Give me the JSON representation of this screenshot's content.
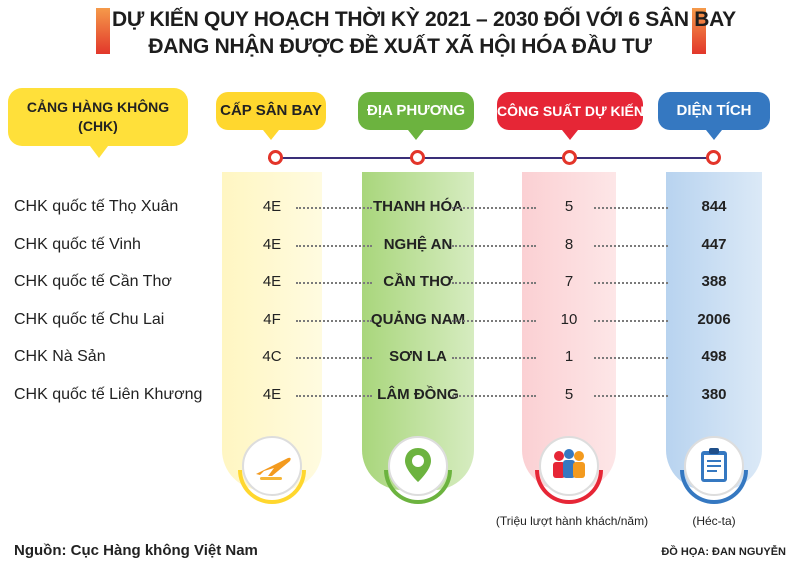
{
  "title": {
    "line1": "DỰ KIẾN QUY HOẠCH THỜI KỲ 2021 – 2030 ĐỐI VỚI 6 SÂN BAY",
    "line2": "ĐANG NHẬN ĐƯỢC ĐỀ XUẤT XÃ HỘI HÓA ĐẦU TƯ"
  },
  "airport_header": {
    "line1": "CẢNG HÀNG KHÔNG",
    "line2": "(CHK)"
  },
  "columns": {
    "level": "CẤP SÂN BAY",
    "locality": "ĐỊA PHƯƠNG",
    "capacity": "CÔNG SUẤT DỰ KIẾN",
    "area": "DIỆN TÍCH"
  },
  "rows": [
    {
      "name": "CHK quốc tế Thọ Xuân",
      "level": "4E",
      "locality": "THANH HÓA",
      "capacity": "5",
      "area": "844"
    },
    {
      "name": "CHK quốc tế Vinh",
      "level": "4E",
      "locality": "NGHỆ AN",
      "capacity": "8",
      "area": "447"
    },
    {
      "name": "CHK quốc tế Cần Thơ",
      "level": "4E",
      "locality": "CẦN THƠ",
      "capacity": "7",
      "area": "388"
    },
    {
      "name": "CHK quốc tế Chu Lai",
      "level": "4F",
      "locality": "QUẢNG NAM",
      "capacity": "10",
      "area": "2006"
    },
    {
      "name": "CHK Nà Sản",
      "level": "4C",
      "locality": "SƠN LA",
      "capacity": "1",
      "area": "498"
    },
    {
      "name": "CHK quốc tế Liên Khương",
      "level": "4E",
      "locality": "LÂM ĐỒNG",
      "capacity": "5",
      "area": "380"
    }
  ],
  "units": {
    "capacity": "(Triệu lượt hành khách/năm)",
    "area": "(Héc-ta)"
  },
  "icons": [
    "airplane-icon",
    "location-pin-icon",
    "people-icon",
    "clipboard-icon"
  ],
  "colors": {
    "yellow": "#ffd72e",
    "green": "#6cb33f",
    "red": "#e62636",
    "blue": "#3578c1"
  },
  "footer": {
    "source": "Nguồn: Cục Hàng không Việt Nam",
    "credit": "ĐỒ HỌA: ĐAN NGUYỄN"
  }
}
